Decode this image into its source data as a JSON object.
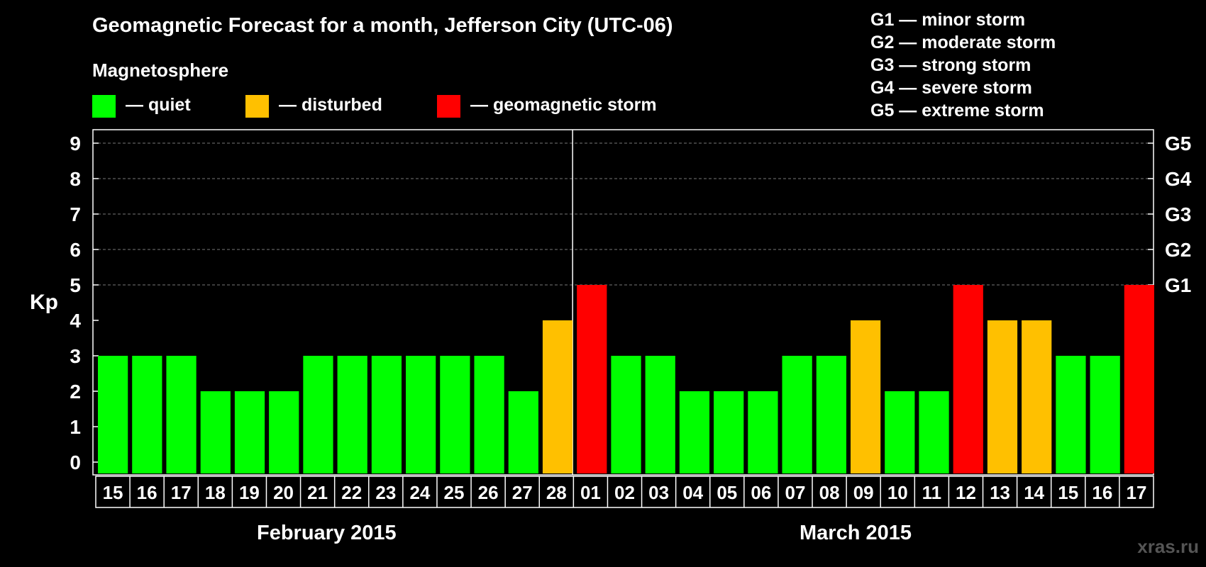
{
  "title": "Geomagnetic Forecast for a month, Jefferson City (UTC-06)",
  "magnetosphere_label": "Magnetosphere",
  "legend": [
    {
      "label": "— quiet",
      "color": "#00ff00"
    },
    {
      "label": "— disturbed",
      "color": "#ffc000"
    },
    {
      "label": "— geomagnetic storm",
      "color": "#ff0000"
    }
  ],
  "g_scale": [
    "G1 — minor storm",
    "G2 — moderate storm",
    "G3 — strong storm",
    "G4 — severe storm",
    "G5 — extreme storm"
  ],
  "watermark": "xras.ru",
  "chart_data": {
    "type": "bar",
    "ylabel": "Kp",
    "ylim": [
      0,
      9
    ],
    "yticks": [
      "0",
      "1",
      "2",
      "3",
      "4",
      "5",
      "6",
      "7",
      "8",
      "9"
    ],
    "right_ticks": [
      {
        "value": 5,
        "label": "G1"
      },
      {
        "value": 6,
        "label": "G2"
      },
      {
        "value": 7,
        "label": "G3"
      },
      {
        "value": 8,
        "label": "G4"
      },
      {
        "value": 9,
        "label": "G5"
      }
    ],
    "grid": "dashed horizontal from Kp 5 to 9",
    "months": [
      {
        "label": "February 2015",
        "days": [
          "15",
          "16",
          "17",
          "18",
          "19",
          "20",
          "21",
          "22",
          "23",
          "24",
          "25",
          "26",
          "27",
          "28"
        ]
      },
      {
        "label": "March 2015",
        "days": [
          "01",
          "02",
          "03",
          "04",
          "05",
          "06",
          "07",
          "08",
          "09",
          "10",
          "11",
          "12",
          "13",
          "14",
          "15",
          "16",
          "17"
        ]
      }
    ],
    "categories": [
      "15",
      "16",
      "17",
      "18",
      "19",
      "20",
      "21",
      "22",
      "23",
      "24",
      "25",
      "26",
      "27",
      "28",
      "01",
      "02",
      "03",
      "04",
      "05",
      "06",
      "07",
      "08",
      "09",
      "10",
      "11",
      "12",
      "13",
      "14",
      "15",
      "16",
      "17"
    ],
    "values": [
      3,
      3,
      3,
      2,
      2,
      2,
      3,
      3,
      3,
      3,
      3,
      3,
      2,
      4,
      5,
      3,
      3,
      2,
      2,
      2,
      3,
      3,
      4,
      2,
      2,
      5,
      4,
      4,
      3,
      3,
      5
    ],
    "colors": {
      "quiet": "#00ff00",
      "disturbed": "#ffc000",
      "storm": "#ff0000"
    }
  }
}
